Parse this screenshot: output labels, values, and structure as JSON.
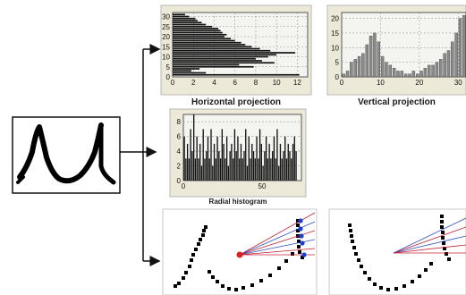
{
  "panels": {
    "horizontal_projection": {
      "caption": "Horizontal projection",
      "x_ticks": [
        "0",
        "2",
        "4",
        "6",
        "8",
        "10",
        "12"
      ],
      "y_ticks": [
        "0",
        "5",
        "10",
        "15",
        "20",
        "25",
        "30"
      ]
    },
    "vertical_projection": {
      "caption": "Vertical projection",
      "x_ticks": [
        "0",
        "10",
        "20",
        "30"
      ],
      "y_ticks": [
        "0",
        "5",
        "10",
        "15",
        "20"
      ]
    },
    "radial_histogram": {
      "caption": "Radial histogram",
      "x_ticks": [
        "0",
        "50"
      ],
      "y_ticks": [
        "0",
        "2",
        "4",
        "6",
        "8"
      ]
    }
  },
  "chart_data": [
    {
      "type": "bar",
      "orientation": "horizontal",
      "title": "Horizontal projection",
      "xlim": [
        0,
        13
      ],
      "ylim": [
        0,
        32
      ],
      "y": [
        1,
        2,
        3,
        4,
        5,
        6,
        7,
        8,
        9,
        10,
        11,
        12,
        13,
        14,
        15,
        16,
        17,
        18,
        19,
        20,
        21,
        22,
        23,
        24,
        25,
        26,
        27,
        28,
        29,
        30,
        31
      ],
      "values": [
        12.2,
        3.2,
        1.8,
        2.6,
        7.8,
        6.4,
        9.8,
        8.6,
        8.0,
        9.2,
        10.0,
        11.8,
        9.4,
        8.4,
        7.6,
        7.0,
        6.6,
        6.0,
        5.6,
        5.0,
        5.2,
        4.8,
        4.6,
        4.4,
        3.8,
        3.2,
        2.8,
        2.4,
        2.2,
        1.6,
        1.2
      ]
    },
    {
      "type": "bar",
      "title": "Vertical projection",
      "xlim": [
        0,
        32
      ],
      "ylim": [
        0,
        22
      ],
      "x": [
        1,
        2,
        3,
        4,
        5,
        6,
        7,
        8,
        9,
        10,
        11,
        12,
        13,
        14,
        15,
        16,
        17,
        18,
        19,
        20,
        21,
        22,
        23,
        24,
        25,
        26,
        27,
        28,
        29,
        30,
        31,
        32
      ],
      "values": [
        1,
        2,
        5,
        6,
        7,
        8,
        11,
        14,
        15,
        12,
        7,
        5,
        4,
        3,
        2,
        2,
        1,
        1,
        2,
        1,
        2,
        3,
        4,
        4,
        5,
        6,
        8,
        9,
        12,
        15,
        20,
        21
      ]
    },
    {
      "type": "bar",
      "title": "Radial histogram",
      "xlim": [
        0,
        75
      ],
      "ylim": [
        0,
        9
      ],
      "x": [
        1,
        2,
        3,
        4,
        5,
        6,
        7,
        8,
        9,
        10,
        11,
        12,
        13,
        14,
        15,
        16,
        17,
        18,
        19,
        20,
        21,
        22,
        23,
        24,
        25,
        26,
        27,
        28,
        29,
        30,
        31,
        32,
        33,
        34,
        35,
        36,
        37,
        38,
        39,
        40,
        41,
        42,
        43,
        44,
        45,
        46,
        47,
        48,
        49,
        50,
        51,
        52,
        53,
        54,
        55,
        56,
        57,
        58,
        59,
        60,
        61,
        62,
        63,
        64,
        65,
        66,
        67,
        68,
        69,
        70,
        71,
        72
      ],
      "values": [
        6,
        3,
        5,
        3,
        7,
        4,
        9,
        3,
        6,
        3,
        5,
        2,
        7,
        3,
        4,
        6,
        3,
        7,
        2,
        5,
        3,
        6,
        4,
        3,
        7,
        5,
        3,
        6,
        2,
        4,
        5,
        3,
        7,
        4,
        6,
        3,
        5,
        3,
        4,
        7,
        2,
        6,
        3,
        5,
        4,
        3,
        6,
        3,
        7,
        5,
        2,
        4,
        6,
        3,
        5,
        3,
        4,
        6,
        3,
        7,
        2,
        5,
        3,
        4,
        6,
        3,
        5,
        4,
        3,
        5,
        6,
        4
      ]
    }
  ]
}
